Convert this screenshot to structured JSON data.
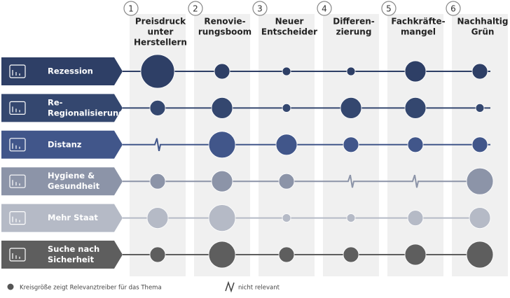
{
  "columns": [
    {
      "number": "1",
      "label": [
        "Preisdruck",
        "unter",
        "Herstellern"
      ]
    },
    {
      "number": "2",
      "label": [
        "Renovie-",
        "rungsboom"
      ]
    },
    {
      "number": "3",
      "label": [
        "Neuer",
        "Entscheider"
      ]
    },
    {
      "number": "4",
      "label": [
        "Differen-",
        "zierung"
      ]
    },
    {
      "number": "5",
      "label": [
        "Fachkräfte-",
        "mangel"
      ]
    },
    {
      "number": "6",
      "label": [
        "Nachhaltig",
        "Grün"
      ]
    }
  ],
  "rows": [
    {
      "label": [
        "Rezession"
      ],
      "color": "#2e3f66",
      "relevance": [
        5,
        2,
        1,
        1,
        3,
        2
      ]
    },
    {
      "label": [
        "Re-",
        "Regionalisierung"
      ],
      "color": "#34476f",
      "relevance": [
        2,
        3,
        1,
        3,
        3,
        1
      ]
    },
    {
      "label": [
        "Distanz"
      ],
      "color": "#41568a",
      "relevance": [
        null,
        4,
        3,
        2,
        2,
        2
      ]
    },
    {
      "label": [
        "Hygiene &",
        "Gesundheit"
      ],
      "color": "#8c94a8",
      "relevance": [
        2,
        3,
        2,
        null,
        null,
        4
      ]
    },
    {
      "label": [
        "Mehr Staat"
      ],
      "color": "#b5bac6",
      "relevance": [
        3,
        4,
        1,
        1,
        2,
        3
      ]
    },
    {
      "label": [
        "Suche nach",
        "Sicherheit"
      ],
      "color": "#5e5e5e",
      "relevance": [
        2,
        4,
        2,
        2,
        3,
        4
      ]
    }
  ],
  "legend": {
    "size": "Kreisgröße zeigt Relevanztreiber für das Thema",
    "not_relevant": "nicht relevant"
  }
}
